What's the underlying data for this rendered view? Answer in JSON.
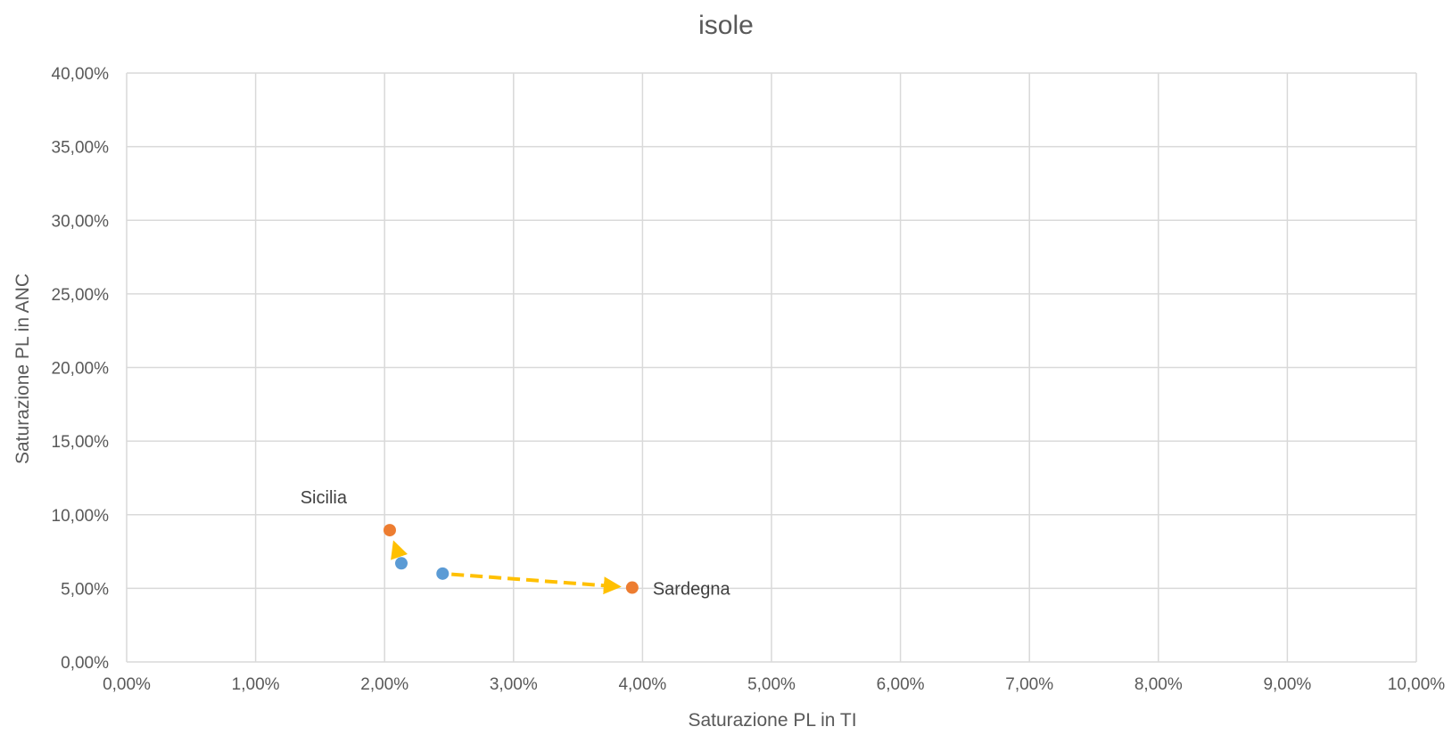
{
  "chart_data": {
    "type": "scatter",
    "title": "isole",
    "xlabel": "Saturazione PL in TI",
    "ylabel": "Saturazione PL in ANC",
    "xlim": [
      0,
      0.1
    ],
    "ylim": [
      0,
      0.4
    ],
    "x_ticks": [
      "0,00%",
      "1,00%",
      "2,00%",
      "3,00%",
      "4,00%",
      "5,00%",
      "6,00%",
      "7,00%",
      "8,00%",
      "9,00%",
      "10,00%"
    ],
    "y_ticks": [
      "0,00%",
      "5,00%",
      "10,00%",
      "15,00%",
      "20,00%",
      "25,00%",
      "30,00%",
      "35,00%",
      "40,00%"
    ],
    "grid": true,
    "legend": "none",
    "series": [
      {
        "color": "#5b9bd5",
        "points": [
          {
            "x": 0.0213,
            "y": 0.067
          },
          {
            "x": 0.0245,
            "y": 0.06
          }
        ]
      },
      {
        "color": "#ed7d31",
        "points": [
          {
            "x": 0.0204,
            "y": 0.0895,
            "label": "Sicilia"
          },
          {
            "x": 0.0392,
            "y": 0.0505,
            "label": "Sardegna"
          }
        ]
      }
    ],
    "arrows": [
      {
        "from": {
          "x": 0.0213,
          "y": 0.067
        },
        "to": {
          "x": 0.0204,
          "y": 0.0895
        }
      },
      {
        "from": {
          "x": 0.0245,
          "y": 0.06
        },
        "to": {
          "x": 0.0392,
          "y": 0.0505
        }
      }
    ],
    "arrow_color": "#ffc000"
  }
}
